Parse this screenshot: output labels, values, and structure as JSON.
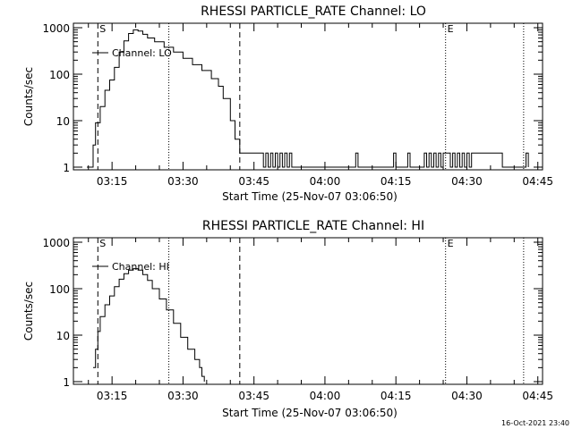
{
  "chart_data": [
    {
      "type": "line",
      "title": "RHESSI PARTICLE_RATE Channel: LO",
      "xlabel": "Start Time (25-Nov-07 03:06:50)",
      "ylabel": "Counts/sec",
      "yscale": "log",
      "ylim": [
        1,
        1000
      ],
      "xlim": [
        "03:06:50",
        "04:46:00"
      ],
      "x_tick_labels": [
        "03:15",
        "03:30",
        "03:45",
        "04:00",
        "04:15",
        "04:30",
        "04:45"
      ],
      "y_tick_labels": [
        "1",
        "10",
        "100",
        "1000"
      ],
      "legend": "Channel: LO",
      "markers": [
        {
          "label": "S",
          "x": "03:12:00",
          "style": "dashed"
        },
        {
          "label": "",
          "x": "03:27:00",
          "style": "dotted"
        },
        {
          "label": "",
          "x": "03:42:00",
          "style": "dashed"
        },
        {
          "label": "E",
          "x": "04:25:30",
          "style": "dotted"
        },
        {
          "label": "",
          "x": "04:42:00",
          "style": "dotted"
        }
      ],
      "series": [
        {
          "x": [
            "03:09:40",
            "03:10:30",
            "03:11:00",
            "03:11:30",
            "03:12:30",
            "03:13:30",
            "03:14:30",
            "03:15:30",
            "03:16:30",
            "03:17:30",
            "03:18:30",
            "03:19:30",
            "03:20:30",
            "03:21:30",
            "03:22:30",
            "03:24:00",
            "03:26:00",
            "03:28:00",
            "03:30:00",
            "03:32:00",
            "03:34:00",
            "03:36:00",
            "03:37:30",
            "03:38:30",
            "03:40:00",
            "03:41:00",
            "03:42:00",
            "03:43:00",
            "03:44:00",
            "03:45:00",
            "03:46:00",
            "03:46:30",
            "03:47:00",
            "03:47:30",
            "03:48:00",
            "03:48:30",
            "03:49:00",
            "03:49:30",
            "03:50:00",
            "03:50:30",
            "03:51:00",
            "03:51:30",
            "03:52:00",
            "03:52:30",
            "03:53:00",
            "03:54:00",
            "04:06:00",
            "04:06:30",
            "04:07:00",
            "04:14:00",
            "04:14:30",
            "04:15:00",
            "04:17:00",
            "04:17:30",
            "04:18:00",
            "04:20:30",
            "04:21:00",
            "04:21:30",
            "04:22:00",
            "04:22:30",
            "04:23:00",
            "04:23:30",
            "04:24:00",
            "04:24:30",
            "04:25:00",
            "04:26:00",
            "04:26:30",
            "04:27:00",
            "04:27:30",
            "04:28:00",
            "04:28:30",
            "04:29:00",
            "04:29:30",
            "04:30:00",
            "04:30:30",
            "04:31:00",
            "04:31:30",
            "04:32:00",
            "04:33:00",
            "04:34:00",
            "04:37:00",
            "04:37:30",
            "04:38:00",
            "04:42:00",
            "04:42:30",
            "04:43:00"
          ],
          "y": [
            1,
            1,
            3,
            9,
            20,
            45,
            75,
            140,
            300,
            520,
            750,
            900,
            850,
            720,
            600,
            500,
            380,
            300,
            220,
            160,
            120,
            80,
            55,
            30,
            10,
            4,
            2,
            2,
            2,
            2,
            2,
            2,
            1,
            2,
            1,
            2,
            1,
            2,
            1,
            2,
            1,
            2,
            1,
            2,
            1,
            1,
            1,
            2,
            1,
            1,
            2,
            1,
            1,
            2,
            1,
            1,
            2,
            1,
            2,
            1,
            2,
            1,
            2,
            1,
            2,
            2,
            1,
            2,
            1,
            2,
            1,
            2,
            1,
            2,
            1,
            2,
            2,
            2,
            2,
            2,
            2,
            1,
            1,
            1,
            2,
            1
          ]
        }
      ]
    },
    {
      "type": "line",
      "title": "RHESSI PARTICLE_RATE Channel: HI",
      "xlabel": "Start Time (25-Nov-07 03:06:50)",
      "ylabel": "Counts/sec",
      "yscale": "log",
      "ylim": [
        1,
        1000
      ],
      "xlim": [
        "03:06:50",
        "04:46:00"
      ],
      "x_tick_labels": [
        "03:15",
        "03:30",
        "03:45",
        "04:00",
        "04:15",
        "04:30",
        "04:45"
      ],
      "y_tick_labels": [
        "1",
        "10",
        "100",
        "1000"
      ],
      "legend": "Channel: HI",
      "markers": [
        {
          "label": "S",
          "x": "03:12:00",
          "style": "dashed"
        },
        {
          "label": "",
          "x": "03:27:00",
          "style": "dotted"
        },
        {
          "label": "",
          "x": "03:42:00",
          "style": "dashed"
        },
        {
          "label": "E",
          "x": "04:25:30",
          "style": "dotted"
        },
        {
          "label": "",
          "x": "04:42:00",
          "style": "dotted"
        }
      ],
      "series": [
        {
          "x": [
            "03:11:00",
            "03:11:30",
            "03:12:00",
            "03:12:30",
            "03:13:30",
            "03:14:30",
            "03:15:30",
            "03:16:30",
            "03:17:30",
            "03:18:30",
            "03:19:30",
            "03:20:30",
            "03:21:30",
            "03:22:30",
            "03:23:30",
            "03:25:00",
            "03:26:30",
            "03:28:00",
            "03:29:30",
            "03:31:00",
            "03:32:30",
            "03:33:30",
            "03:34:00",
            "03:34:30"
          ],
          "y": [
            2,
            5,
            12,
            25,
            45,
            70,
            110,
            160,
            210,
            250,
            270,
            250,
            200,
            150,
            100,
            60,
            35,
            18,
            9,
            5,
            3,
            2,
            1.3,
            1
          ]
        }
      ]
    }
  ],
  "footer": {
    "timestamp": "16-Oct-2021 23:40"
  }
}
